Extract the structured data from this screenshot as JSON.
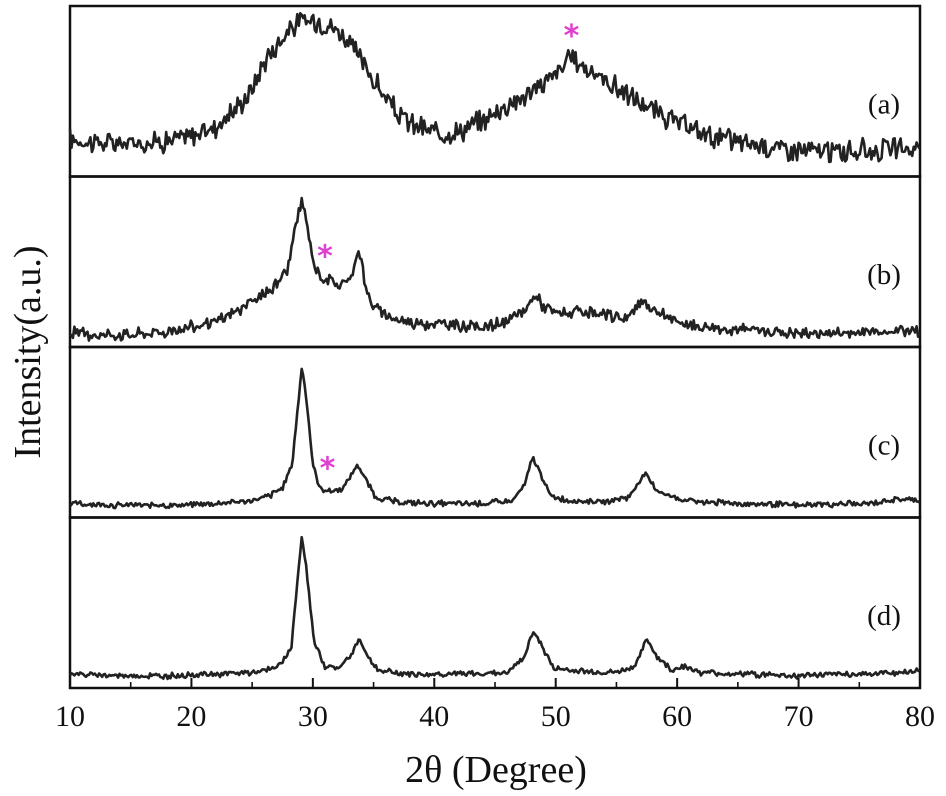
{
  "chart_data": {
    "type": "line",
    "xlabel": "2θ (Degree)",
    "ylabel": "Intensity(a.u.)",
    "xlim": [
      10,
      80
    ],
    "x_ticks": [
      "10",
      "20",
      "30",
      "40",
      "50",
      "60",
      "70",
      "80"
    ],
    "grid": false,
    "marker_color": "#e040d0",
    "line_color": "#222222",
    "series": [
      {
        "name": "(a)",
        "star_at": 51.3,
        "points": [
          [
            10,
            0.2
          ],
          [
            12,
            0.18
          ],
          [
            14,
            0.17
          ],
          [
            16,
            0.18
          ],
          [
            18,
            0.19
          ],
          [
            20,
            0.22
          ],
          [
            22,
            0.28
          ],
          [
            24,
            0.42
          ],
          [
            25,
            0.52
          ],
          [
            26,
            0.7
          ],
          [
            27,
            0.8
          ],
          [
            28,
            0.9
          ],
          [
            29,
            0.95
          ],
          [
            30,
            0.96
          ],
          [
            31,
            0.94
          ],
          [
            32,
            0.9
          ],
          [
            33,
            0.82
          ],
          [
            34,
            0.7
          ],
          [
            35,
            0.58
          ],
          [
            36,
            0.46
          ],
          [
            37,
            0.36
          ],
          [
            38,
            0.3
          ],
          [
            40,
            0.24
          ],
          [
            42,
            0.25
          ],
          [
            44,
            0.32
          ],
          [
            46,
            0.42
          ],
          [
            48,
            0.5
          ],
          [
            50,
            0.62
          ],
          [
            51.3,
            0.72
          ],
          [
            52,
            0.68
          ],
          [
            54,
            0.58
          ],
          [
            56,
            0.48
          ],
          [
            58,
            0.38
          ],
          [
            60,
            0.3
          ],
          [
            62,
            0.24
          ],
          [
            64,
            0.2
          ],
          [
            66,
            0.17
          ],
          [
            68,
            0.15
          ],
          [
            70,
            0.13
          ],
          [
            72,
            0.12
          ],
          [
            74,
            0.12
          ],
          [
            76,
            0.13
          ],
          [
            78,
            0.14
          ],
          [
            80,
            0.14
          ]
        ]
      },
      {
        "name": "(b)",
        "star_at": 31.0,
        "points": [
          [
            10,
            0.05
          ],
          [
            14,
            0.04
          ],
          [
            18,
            0.06
          ],
          [
            22,
            0.12
          ],
          [
            24,
            0.2
          ],
          [
            26,
            0.3
          ],
          [
            27,
            0.36
          ],
          [
            28,
            0.48
          ],
          [
            28.5,
            0.7
          ],
          [
            29.1,
            0.9
          ],
          [
            29.6,
            0.7
          ],
          [
            30.2,
            0.45
          ],
          [
            31,
            0.4
          ],
          [
            32,
            0.36
          ],
          [
            33,
            0.38
          ],
          [
            33.8,
            0.6
          ],
          [
            34.4,
            0.32
          ],
          [
            35,
            0.22
          ],
          [
            36,
            0.16
          ],
          [
            38,
            0.12
          ],
          [
            40,
            0.11
          ],
          [
            42,
            0.1
          ],
          [
            44,
            0.09
          ],
          [
            46,
            0.12
          ],
          [
            47.5,
            0.2
          ],
          [
            48.3,
            0.3
          ],
          [
            49,
            0.22
          ],
          [
            50,
            0.18
          ],
          [
            52,
            0.18
          ],
          [
            54,
            0.16
          ],
          [
            56,
            0.15
          ],
          [
            57.2,
            0.26
          ],
          [
            58,
            0.2
          ],
          [
            60,
            0.12
          ],
          [
            62,
            0.09
          ],
          [
            64,
            0.08
          ],
          [
            66,
            0.07
          ],
          [
            70,
            0.05
          ],
          [
            74,
            0.05
          ],
          [
            78,
            0.07
          ],
          [
            80,
            0.07
          ]
        ]
      },
      {
        "name": "(c)",
        "star_at": 31.2,
        "points": [
          [
            10,
            0.05
          ],
          [
            14,
            0.04
          ],
          [
            18,
            0.04
          ],
          [
            22,
            0.05
          ],
          [
            25,
            0.07
          ],
          [
            26.5,
            0.1
          ],
          [
            27.5,
            0.15
          ],
          [
            28.3,
            0.3
          ],
          [
            28.8,
            0.7
          ],
          [
            29.1,
            0.93
          ],
          [
            29.5,
            0.7
          ],
          [
            30.0,
            0.3
          ],
          [
            30.6,
            0.14
          ],
          [
            31.5,
            0.13
          ],
          [
            32.5,
            0.15
          ],
          [
            33.2,
            0.24
          ],
          [
            33.7,
            0.3
          ],
          [
            34.4,
            0.2
          ],
          [
            35.2,
            0.09
          ],
          [
            37,
            0.06
          ],
          [
            40,
            0.05
          ],
          [
            44,
            0.05
          ],
          [
            46.5,
            0.07
          ],
          [
            47.5,
            0.18
          ],
          [
            48.1,
            0.35
          ],
          [
            48.7,
            0.25
          ],
          [
            49.6,
            0.1
          ],
          [
            51,
            0.07
          ],
          [
            54,
            0.06
          ],
          [
            56,
            0.09
          ],
          [
            57.3,
            0.24
          ],
          [
            58.3,
            0.14
          ],
          [
            59.5,
            0.09
          ],
          [
            62,
            0.06
          ],
          [
            66,
            0.05
          ],
          [
            70,
            0.04
          ],
          [
            74,
            0.05
          ],
          [
            76,
            0.05
          ],
          [
            78,
            0.08
          ],
          [
            80,
            0.07
          ]
        ]
      },
      {
        "name": "(d)",
        "points": [
          [
            10,
            0.05
          ],
          [
            14,
            0.04
          ],
          [
            18,
            0.04
          ],
          [
            22,
            0.05
          ],
          [
            25,
            0.06
          ],
          [
            27,
            0.09
          ],
          [
            28.2,
            0.2
          ],
          [
            28.8,
            0.7
          ],
          [
            29.1,
            0.95
          ],
          [
            29.5,
            0.7
          ],
          [
            30.1,
            0.25
          ],
          [
            31,
            0.1
          ],
          [
            32.2,
            0.09
          ],
          [
            33.3,
            0.2
          ],
          [
            33.8,
            0.28
          ],
          [
            34.6,
            0.15
          ],
          [
            35.5,
            0.07
          ],
          [
            38,
            0.05
          ],
          [
            42,
            0.05
          ],
          [
            46,
            0.06
          ],
          [
            47.4,
            0.16
          ],
          [
            48.2,
            0.33
          ],
          [
            48.9,
            0.22
          ],
          [
            49.8,
            0.09
          ],
          [
            52,
            0.07
          ],
          [
            55,
            0.06
          ],
          [
            56.5,
            0.1
          ],
          [
            57.5,
            0.27
          ],
          [
            58.4,
            0.16
          ],
          [
            59.5,
            0.08
          ],
          [
            60.5,
            0.1
          ],
          [
            62,
            0.06
          ],
          [
            66,
            0.05
          ],
          [
            70,
            0.04
          ],
          [
            74,
            0.05
          ],
          [
            78,
            0.06
          ],
          [
            80,
            0.07
          ]
        ]
      }
    ]
  }
}
